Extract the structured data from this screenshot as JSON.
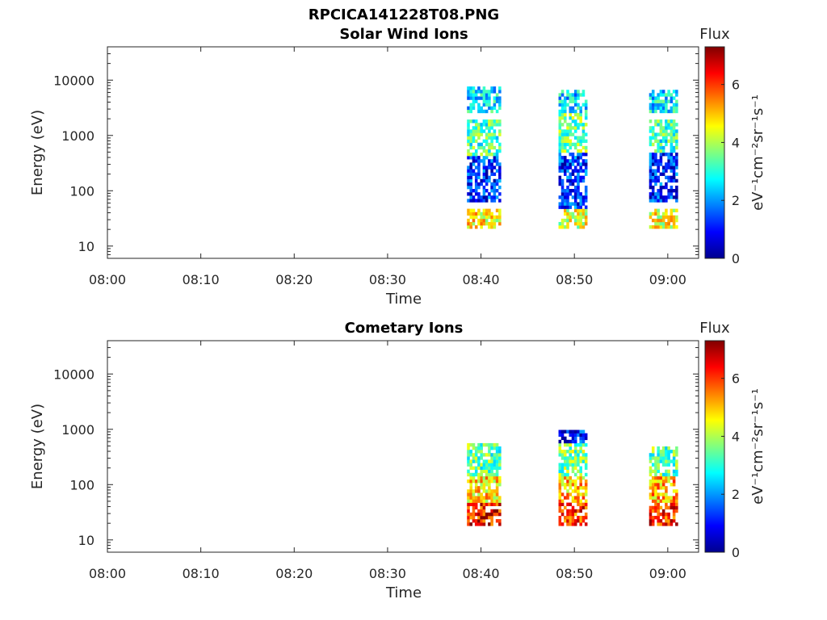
{
  "figure_title": "RPCICA141228T08.PNG",
  "chart_data": [
    {
      "type": "heatmap",
      "title": "Solar Wind Ions",
      "xlabel": "Time",
      "ylabel": "Energy (eV)",
      "x_ticks": [
        "08:00",
        "08:10",
        "08:20",
        "08:30",
        "08:40",
        "08:50",
        "09:00"
      ],
      "y_ticks": [
        "10",
        "100",
        "1000",
        "10000"
      ],
      "y_scale": "log",
      "ylim": [
        6,
        40000
      ],
      "xlim_minutes": [
        0,
        63.3
      ],
      "colorbar": {
        "title": "Flux",
        "label": "eV⁻¹cm⁻²sr⁻¹s⁻¹",
        "ticks": [
          "0",
          "2",
          "4",
          "6"
        ],
        "range": [
          0,
          7.3
        ],
        "colormap": "jet"
      },
      "bursts": [
        {
          "start_min": 38.5,
          "end_min": 42.0,
          "bands": [
            {
              "e_low": 20,
              "e_high": 45,
              "flux": 4.6
            },
            {
              "e_low": 60,
              "e_high": 450,
              "flux": 1.2
            },
            {
              "e_low": 450,
              "e_high": 1900,
              "flux": 3.3
            },
            {
              "e_low": 2500,
              "e_high": 8000,
              "flux": 2.6
            }
          ]
        },
        {
          "start_min": 48.3,
          "end_min": 51.3,
          "bands": [
            {
              "e_low": 22,
              "e_high": 50,
              "flux": 4.3
            },
            {
              "e_low": 50,
              "e_high": 500,
              "flux": 1.3
            },
            {
              "e_low": 500,
              "e_high": 2500,
              "flux": 3.5
            },
            {
              "e_low": 2500,
              "e_high": 6500,
              "flux": 2.5
            }
          ]
        },
        {
          "start_min": 58.0,
          "end_min": 61.0,
          "bands": [
            {
              "e_low": 20,
              "e_high": 45,
              "flux": 4.5
            },
            {
              "e_low": 60,
              "e_high": 500,
              "flux": 1.2
            },
            {
              "e_low": 500,
              "e_high": 2000,
              "flux": 3.2
            },
            {
              "e_low": 2500,
              "e_high": 6500,
              "flux": 2.6
            }
          ]
        }
      ]
    },
    {
      "type": "heatmap",
      "title": "Cometary Ions",
      "xlabel": "Time",
      "ylabel": "Energy (eV)",
      "x_ticks": [
        "08:00",
        "08:10",
        "08:20",
        "08:30",
        "08:40",
        "08:50",
        "09:00"
      ],
      "y_ticks": [
        "10",
        "100",
        "1000",
        "10000"
      ],
      "y_scale": "log",
      "ylim": [
        6,
        40000
      ],
      "xlim_minutes": [
        0,
        63.3
      ],
      "colorbar": {
        "title": "Flux",
        "label": "eV⁻¹cm⁻²sr⁻¹s⁻¹",
        "ticks": [
          "0",
          "2",
          "4",
          "6"
        ],
        "range": [
          0,
          7.3
        ],
        "colormap": "jet"
      },
      "bursts": [
        {
          "start_min": 38.5,
          "end_min": 42.0,
          "bands": [
            {
              "e_low": 18,
              "e_high": 45,
              "flux": 6.3
            },
            {
              "e_low": 45,
              "e_high": 150,
              "flux": 4.8
            },
            {
              "e_low": 150,
              "e_high": 550,
              "flux": 3.4
            }
          ]
        },
        {
          "start_min": 48.3,
          "end_min": 51.3,
          "bands": [
            {
              "e_low": 18,
              "e_high": 45,
              "flux": 6.0
            },
            {
              "e_low": 45,
              "e_high": 150,
              "flux": 5.0
            },
            {
              "e_low": 150,
              "e_high": 550,
              "flux": 3.6
            },
            {
              "e_low": 550,
              "e_high": 1000,
              "flux": 1.0
            }
          ]
        },
        {
          "start_min": 58.0,
          "end_min": 61.0,
          "bands": [
            {
              "e_low": 18,
              "e_high": 45,
              "flux": 6.2
            },
            {
              "e_low": 45,
              "e_high": 150,
              "flux": 5.1
            },
            {
              "e_low": 150,
              "e_high": 500,
              "flux": 3.4
            }
          ]
        }
      ]
    }
  ]
}
